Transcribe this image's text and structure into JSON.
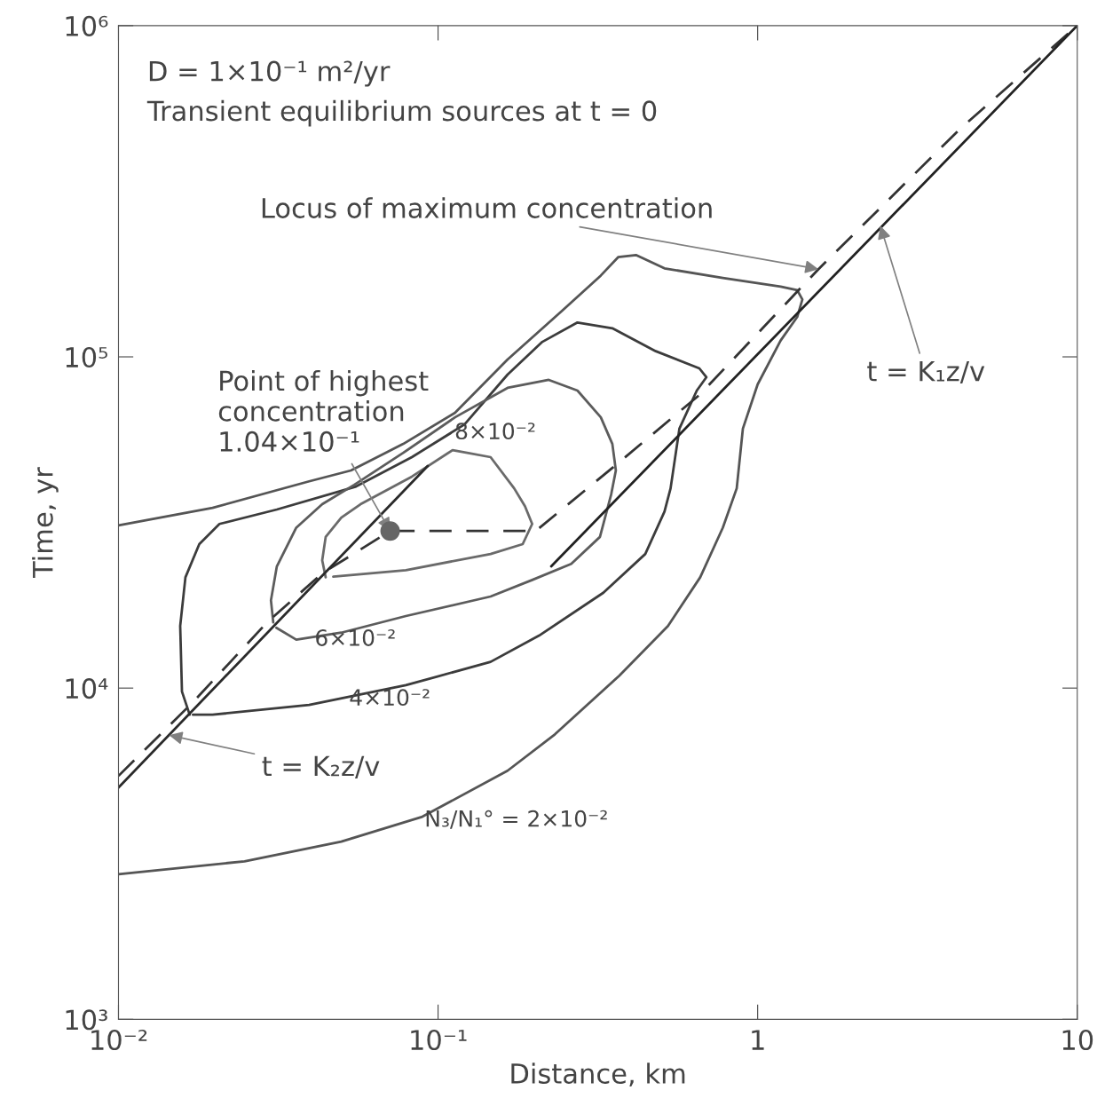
{
  "chart_data": {
    "type": "line",
    "xlabel": "Distance, km",
    "ylabel": "Time, yr",
    "log": "xy",
    "grid": false,
    "xlim": [
      0.01,
      10
    ],
    "ylim": [
      1000,
      1000000
    ],
    "xticks": [
      {
        "value": 0.01,
        "label": "10⁻²"
      },
      {
        "value": 0.1,
        "label": "10⁻¹"
      },
      1,
      10
    ],
    "yticks": [
      {
        "value": 1000,
        "label": "10³"
      },
      {
        "value": 10000,
        "label": "10⁴"
      },
      {
        "value": 100000,
        "label": "10⁵"
      },
      {
        "value": 1000000,
        "label": "10⁶"
      }
    ],
    "series": [
      {
        "color": "#555555",
        "line_style": "solid",
        "x": [
          0.01,
          0.0197,
          0.0395,
          0.0534,
          0.0778,
          0.113,
          0.165,
          0.245,
          0.323,
          0.366,
          0.416,
          0.511,
          0.778,
          1.18,
          1.33,
          1.38,
          1.33,
          1.18,
          1.0,
          0.899,
          0.86,
          0.778,
          0.661,
          0.524,
          0.369,
          0.232,
          0.165,
          0.0893,
          0.0498,
          0.0248,
          0.01
        ],
        "values": [
          31000,
          35000,
          42100,
          45400,
          54600,
          67800,
          98200,
          138000,
          176000,
          200000,
          203000,
          185000,
          173000,
          163000,
          159000,
          149000,
          132000,
          112000,
          82600,
          60700,
          40100,
          30500,
          21600,
          15400,
          10900,
          7250,
          5630,
          4090,
          3440,
          3000,
          2740
        ]
      },
      {
        "color": "#3c3c3c",
        "line_style": "solid",
        "x": [
          0.0167,
          0.0158,
          0.0156,
          0.0162,
          0.0179,
          0.0207,
          0.0313,
          0.0554,
          0.0828,
          0.121,
          0.165,
          0.212,
          0.273,
          0.351,
          0.48,
          0.657,
          0.691,
          0.645,
          0.569,
          0.534,
          0.511,
          0.445,
          0.329,
          0.207,
          0.146,
          0.0793,
          0.0395,
          0.0197,
          0.0171
        ],
        "values": [
          8310,
          9760,
          15400,
          21600,
          27200,
          31300,
          34600,
          40600,
          49800,
          62500,
          88400,
          111000,
          127000,
          122000,
          104000,
          92300,
          86800,
          79100,
          60700,
          40100,
          34100,
          25400,
          19400,
          14400,
          12000,
          10200,
          8900,
          8310,
          8310
        ]
      },
      {
        "color": "#5c5c5c",
        "line_style": "solid",
        "x": [
          0.0305,
          0.03,
          0.0313,
          0.036,
          0.0434,
          0.0547,
          0.0778,
          0.113,
          0.165,
          0.222,
          0.273,
          0.323,
          0.351,
          0.36,
          0.348,
          0.321,
          0.261,
          0.197,
          0.146,
          0.0793,
          0.0498,
          0.036,
          0.0312
        ],
        "values": [
          15800,
          18400,
          23300,
          30500,
          35900,
          41100,
          51300,
          65700,
          80600,
          85200,
          79100,
          65700,
          54600,
          45400,
          38400,
          28600,
          23700,
          21200,
          18900,
          16500,
          14700,
          14000,
          15200
        ]
      },
      {
        "color": "#6a6a6a",
        "line_style": "solid",
        "x": [
          0.0445,
          0.0434,
          0.0445,
          0.0498,
          0.0572,
          0.0828,
          0.111,
          0.146,
          0.173,
          0.187,
          0.197,
          0.184,
          0.146,
          0.0793,
          0.047
        ],
        "values": [
          21600,
          24300,
          28600,
          32700,
          35900,
          43500,
          52300,
          49800,
          40100,
          35400,
          31300,
          27200,
          25400,
          22700,
          21700
        ]
      },
      {
        "color": "#333333",
        "line_style": "dashed",
        "x": [
          0.01,
          0.0172,
          0.0292,
          0.0434,
          0.0708,
          0.202,
          0.351,
          0.657,
          1.55,
          4.31,
          10
        ],
        "values": [
          5430,
          9120,
          15800,
          22200,
          29800,
          29800,
          46200,
          76700,
          184000,
          489000,
          1000000
        ]
      },
      {
        "color": "#2a2a2a",
        "line_style": "solid",
        "x": [
          0.01,
          0.0928
        ],
        "values": [
          5010,
          46800
        ]
      },
      {
        "color": "#222222",
        "line_style": "solid",
        "x": [
          0.226,
          10
        ],
        "values": [
          23300,
          1000000
        ]
      },
      {
        "type": "scatter",
        "color": "#666666",
        "marker": "circle",
        "x": [
          0.0708
        ],
        "values": [
          29800
        ]
      }
    ],
    "annotations": [
      "D = 1×10⁻¹ m²/yr",
      "Transient equilibrium sources at t = 0",
      {
        "text": "Locus of maximum concentration",
        "x": 1.55,
        "y": 184000
      },
      {
        "text": "Point of highest\nconcentration\n1.04×10⁻¹",
        "x": 0.0708,
        "y": 29800
      },
      "8×10⁻²",
      "6×10⁻²",
      "4×10⁻²",
      "N₃/N₁° = 2×10⁻²",
      {
        "text": "t = K₁z/v",
        "x": 2.42,
        "y": 249000
      },
      {
        "text": "t = K₂z/v",
        "x": 0.0144,
        "y": 7210
      }
    ]
  }
}
